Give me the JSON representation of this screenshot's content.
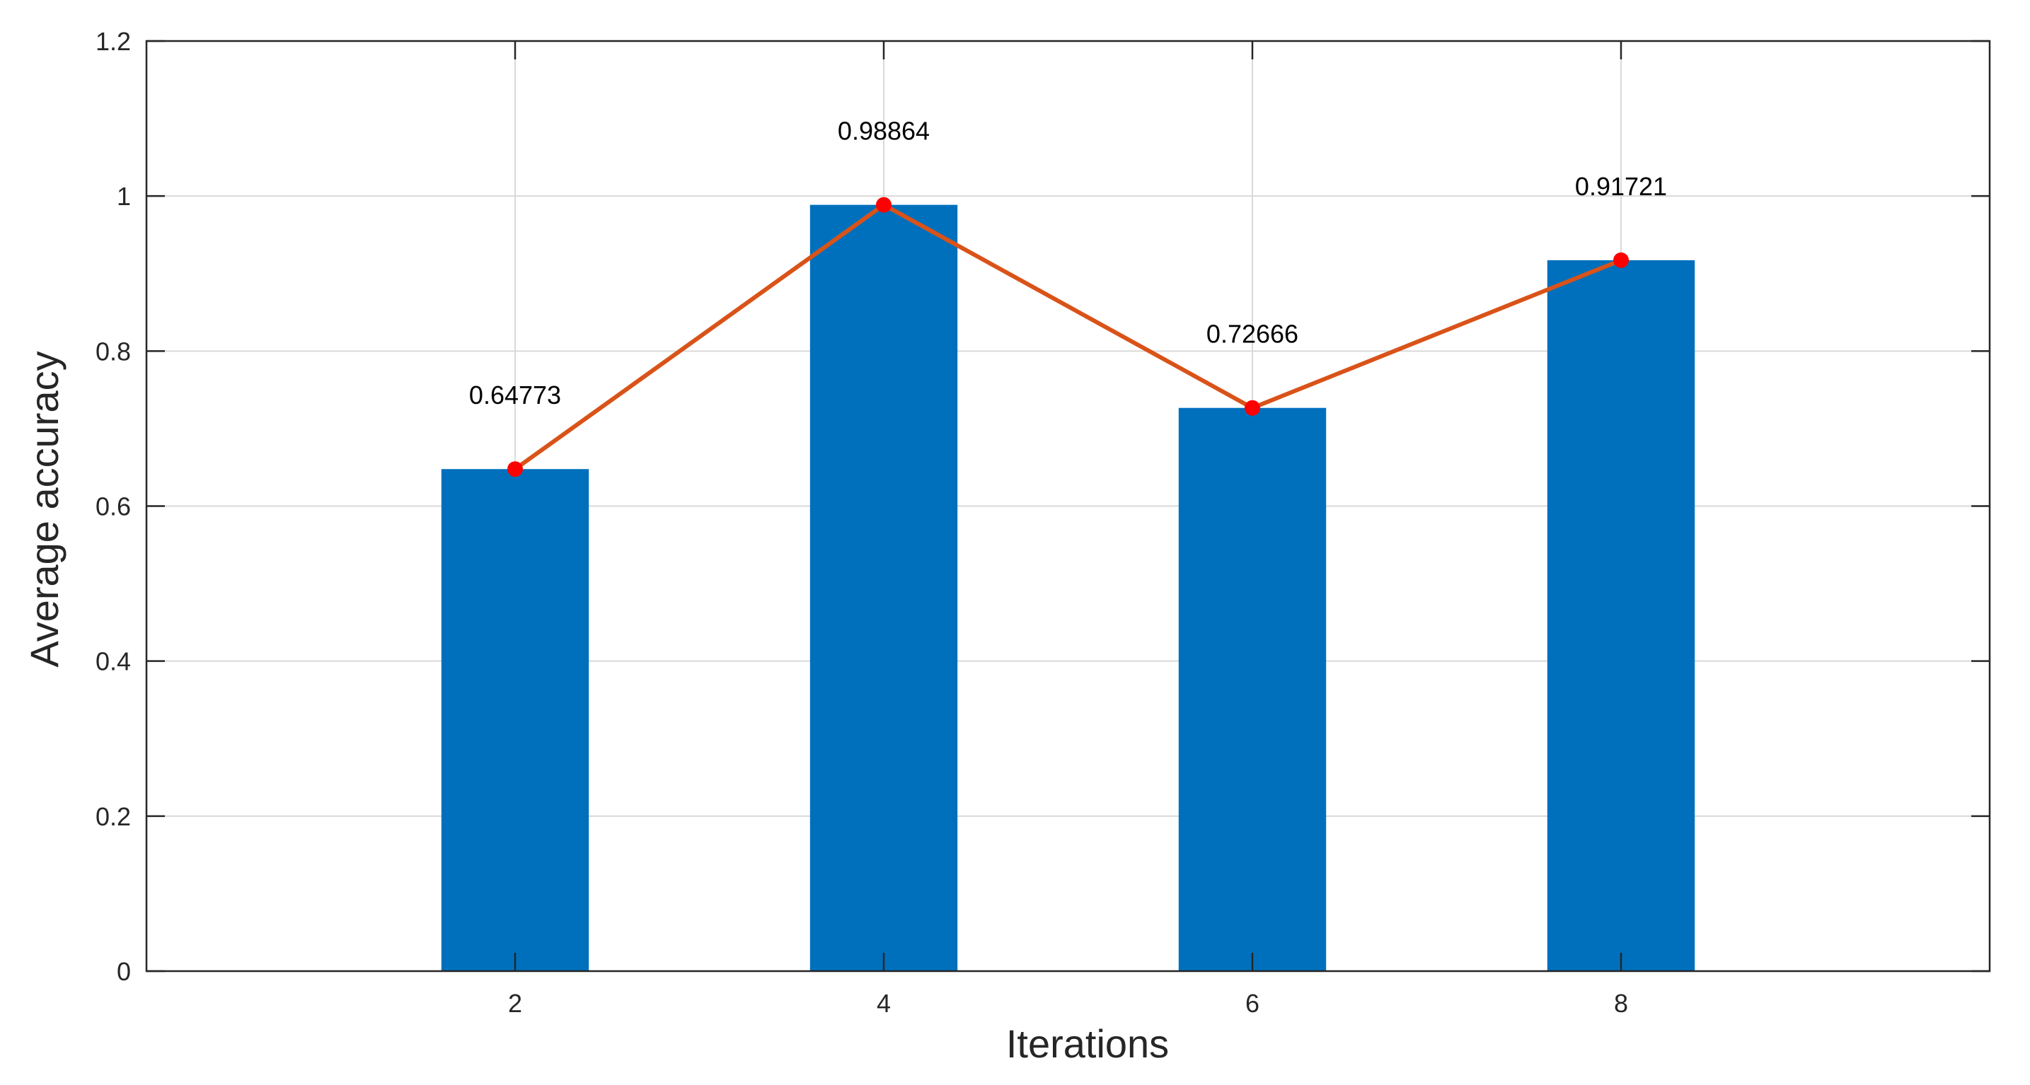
{
  "colors": {
    "bar": "#0070BD",
    "line": "#D95319",
    "marker": "#FF0000",
    "grid": "#D9D9D9",
    "axis": "#262626",
    "text": "#000000"
  },
  "chart_data": {
    "type": "bar",
    "title": "",
    "xlabel": "Iterations",
    "ylabel": "Average accuracy",
    "xlim": [
      0,
      10
    ],
    "ylim": [
      0,
      1.2
    ],
    "xticks": [
      2,
      4,
      6,
      8
    ],
    "yticks": [
      0,
      0.2,
      0.4,
      0.6,
      0.8,
      1,
      1.2
    ],
    "ytick_labels": [
      "0",
      "0.2",
      "0.4",
      "0.6",
      "0.8",
      "1",
      "1.2"
    ],
    "xtick_labels": [
      "2",
      "4",
      "6",
      "8"
    ],
    "grid": true,
    "box": true,
    "bar_width": 0.8,
    "series": [
      {
        "type": "bar",
        "x": [
          2,
          4,
          6,
          8
        ],
        "values": [
          0.64773,
          0.98864,
          0.72666,
          0.91721
        ]
      },
      {
        "type": "line",
        "markers": true,
        "x": [
          2,
          4,
          6,
          8
        ],
        "values": [
          0.64773,
          0.98864,
          0.72666,
          0.91721
        ]
      }
    ],
    "data_labels": [
      "0.64773",
      "0.98864",
      "0.72666",
      "0.91721"
    ]
  }
}
